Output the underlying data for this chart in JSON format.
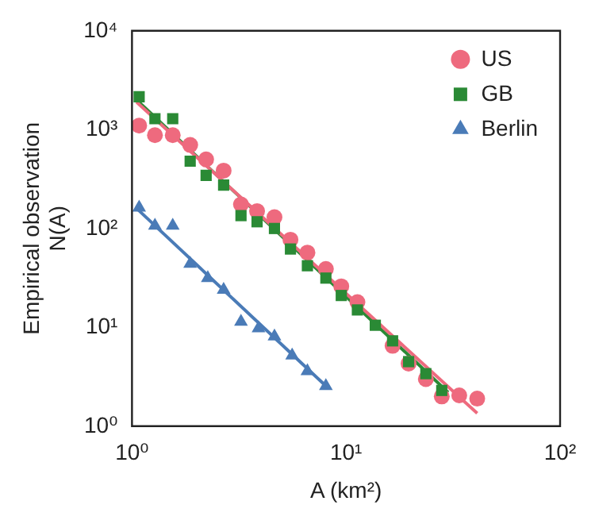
{
  "chart_data": {
    "type": "scatter",
    "xlabel": "A (km²)",
    "ylabel": "Empirical observation\nN(A)",
    "log": "xy",
    "xlim": [
      1,
      100
    ],
    "ylim": [
      1,
      10000
    ],
    "xticks": [
      {
        "value": 1,
        "label": "10⁰"
      },
      {
        "value": 10,
        "label": "10¹"
      },
      {
        "value": 100,
        "label": "10²"
      }
    ],
    "yticks": [
      {
        "value": 1,
        "label": "10⁰"
      },
      {
        "value": 10,
        "label": "10¹"
      },
      {
        "value": 100,
        "label": "10²"
      },
      {
        "value": 1000,
        "label": "10³"
      },
      {
        "value": 10000,
        "label": "10⁴"
      }
    ],
    "grid": false,
    "legend": "top right",
    "series": [
      {
        "name": "US",
        "color": "#ee6a7e",
        "marker": "circle",
        "x": [
          1.08,
          1.28,
          1.55,
          1.87,
          2.22,
          2.68,
          3.23,
          3.84,
          4.63,
          5.5,
          6.6,
          8.05,
          9.5,
          11.3,
          16.5,
          19.6,
          23.6,
          28,
          33.8,
          41
        ],
        "values": [
          1100,
          880,
          880,
          700,
          500,
          385,
          175,
          150,
          130,
          77,
          57,
          39,
          26,
          18,
          6.5,
          4.3,
          3.0,
          2.0,
          2.05,
          1.9
        ]
      },
      {
        "name": "GB",
        "color": "#2a8a35",
        "marker": "square",
        "x": [
          1.08,
          1.28,
          1.55,
          1.87,
          2.22,
          2.68,
          3.23,
          3.84,
          4.63,
          5.5,
          6.6,
          8.05,
          9.5,
          11.3,
          13.7,
          16.5,
          19.6,
          23.6,
          28
        ],
        "values": [
          2150,
          1290,
          1290,
          480,
          345,
          275,
          135,
          117,
          100,
          62,
          42,
          31.5,
          21,
          15,
          10.5,
          7.3,
          4.5,
          3.4,
          2.3
        ]
      },
      {
        "name": "Berlin",
        "color": "#4a7bb7",
        "marker": "triangle",
        "x": [
          1.08,
          1.28,
          1.55,
          1.87,
          2.26,
          2.68,
          3.23,
          3.9,
          4.63,
          5.6,
          6.6,
          8.05
        ],
        "values": [
          163,
          107,
          107,
          44,
          31.5,
          24,
          11.4,
          9.8,
          8.1,
          5.2,
          3.6,
          2.55
        ]
      },
      {
        "type": "line",
        "color": "#ee6a7e",
        "marker": "none",
        "x": [
          1.05,
          41
        ],
        "values": [
          1900,
          1.35
        ]
      },
      {
        "type": "line",
        "color": "#2a8a35",
        "marker": "none",
        "x": [
          1.05,
          30
        ],
        "values": [
          2000,
          2.2
        ]
      },
      {
        "type": "line",
        "color": "#4a7bb7",
        "marker": "none",
        "x": [
          1.05,
          8.3
        ],
        "values": [
          160,
          2.4
        ]
      }
    ]
  }
}
